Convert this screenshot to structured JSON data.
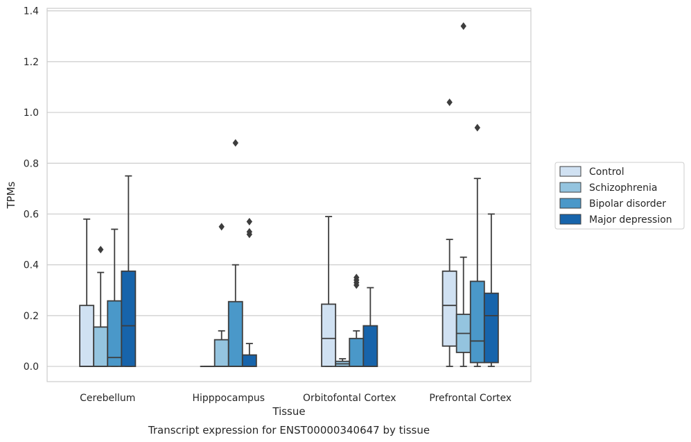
{
  "chart_data": {
    "type": "box",
    "xlabel": "Tissue",
    "ylabel": "TPMs",
    "caption": "Transcript expression for ENST00000340647 by tissue",
    "ylim": [
      -0.06,
      1.41
    ],
    "yticks": [
      "0.0",
      "0.2",
      "0.4",
      "0.6",
      "0.8",
      "1.0",
      "1.2",
      "1.4"
    ],
    "ytick_values": [
      0,
      0.2,
      0.4,
      0.6,
      0.8,
      1.0,
      1.2,
      1.4
    ],
    "grid": "horizontal",
    "legend_position": "right",
    "categories": [
      "Cerebellum",
      "Hipppocampus",
      "Orbitofontal Cortex",
      "Prefrontal Cortex"
    ],
    "series": [
      {
        "name": "Control",
        "color": "#d0e1f2",
        "boxes": [
          {
            "whislo": 0,
            "q1": 0,
            "med": 0,
            "q3": 0.24,
            "whishi": 0.58,
            "fliers": []
          },
          {
            "whislo": 0,
            "q1": 0,
            "med": 0,
            "q3": 0,
            "whishi": 0,
            "fliers": []
          },
          {
            "whislo": 0,
            "q1": 0,
            "med": 0.11,
            "q3": 0.245,
            "whishi": 0.59,
            "fliers": []
          },
          {
            "whislo": 0,
            "q1": 0.08,
            "med": 0.24,
            "q3": 0.375,
            "whishi": 0.5,
            "fliers": [
              1.04
            ]
          }
        ]
      },
      {
        "name": "Schizophrenia",
        "color": "#94c4df",
        "boxes": [
          {
            "whislo": 0,
            "q1": 0,
            "med": 0,
            "q3": 0.155,
            "whishi": 0.37,
            "fliers": [
              0.46
            ]
          },
          {
            "whislo": 0,
            "q1": 0,
            "med": 0,
            "q3": 0.105,
            "whishi": 0.14,
            "fliers": [
              0.55
            ]
          },
          {
            "whislo": 0,
            "q1": 0,
            "med": 0.01,
            "q3": 0.02,
            "whishi": 0.03,
            "fliers": []
          },
          {
            "whislo": 0,
            "q1": 0.055,
            "med": 0.13,
            "q3": 0.205,
            "whishi": 0.43,
            "fliers": [
              1.34
            ]
          }
        ]
      },
      {
        "name": "Bipolar disorder",
        "color": "#4a98c9",
        "boxes": [
          {
            "whislo": 0,
            "q1": 0,
            "med": 0.035,
            "q3": 0.258,
            "whishi": 0.54,
            "fliers": []
          },
          {
            "whislo": 0,
            "q1": 0,
            "med": 0,
            "q3": 0.255,
            "whishi": 0.4,
            "fliers": [
              0.88
            ]
          },
          {
            "whislo": 0,
            "q1": 0,
            "med": 0,
            "q3": 0.11,
            "whishi": 0.14,
            "fliers": [
              0.32,
              0.33,
              0.34,
              0.35
            ]
          },
          {
            "whislo": 0,
            "q1": 0.015,
            "med": 0.1,
            "q3": 0.335,
            "whishi": 0.74,
            "fliers": [
              0.94
            ]
          }
        ]
      },
      {
        "name": "Major depression",
        "color": "#1764ab",
        "boxes": [
          {
            "whislo": 0,
            "q1": 0,
            "med": 0.16,
            "q3": 0.375,
            "whishi": 0.75,
            "fliers": []
          },
          {
            "whislo": 0,
            "q1": 0,
            "med": 0,
            "q3": 0.045,
            "whishi": 0.09,
            "fliers": [
              0.52,
              0.53,
              0.57
            ]
          },
          {
            "whislo": 0,
            "q1": 0,
            "med": 0,
            "q3": 0.16,
            "whishi": 0.31,
            "fliers": []
          },
          {
            "whislo": 0,
            "q1": 0.015,
            "med": 0.2,
            "q3": 0.288,
            "whishi": 0.6,
            "fliers": []
          }
        ]
      }
    ]
  }
}
